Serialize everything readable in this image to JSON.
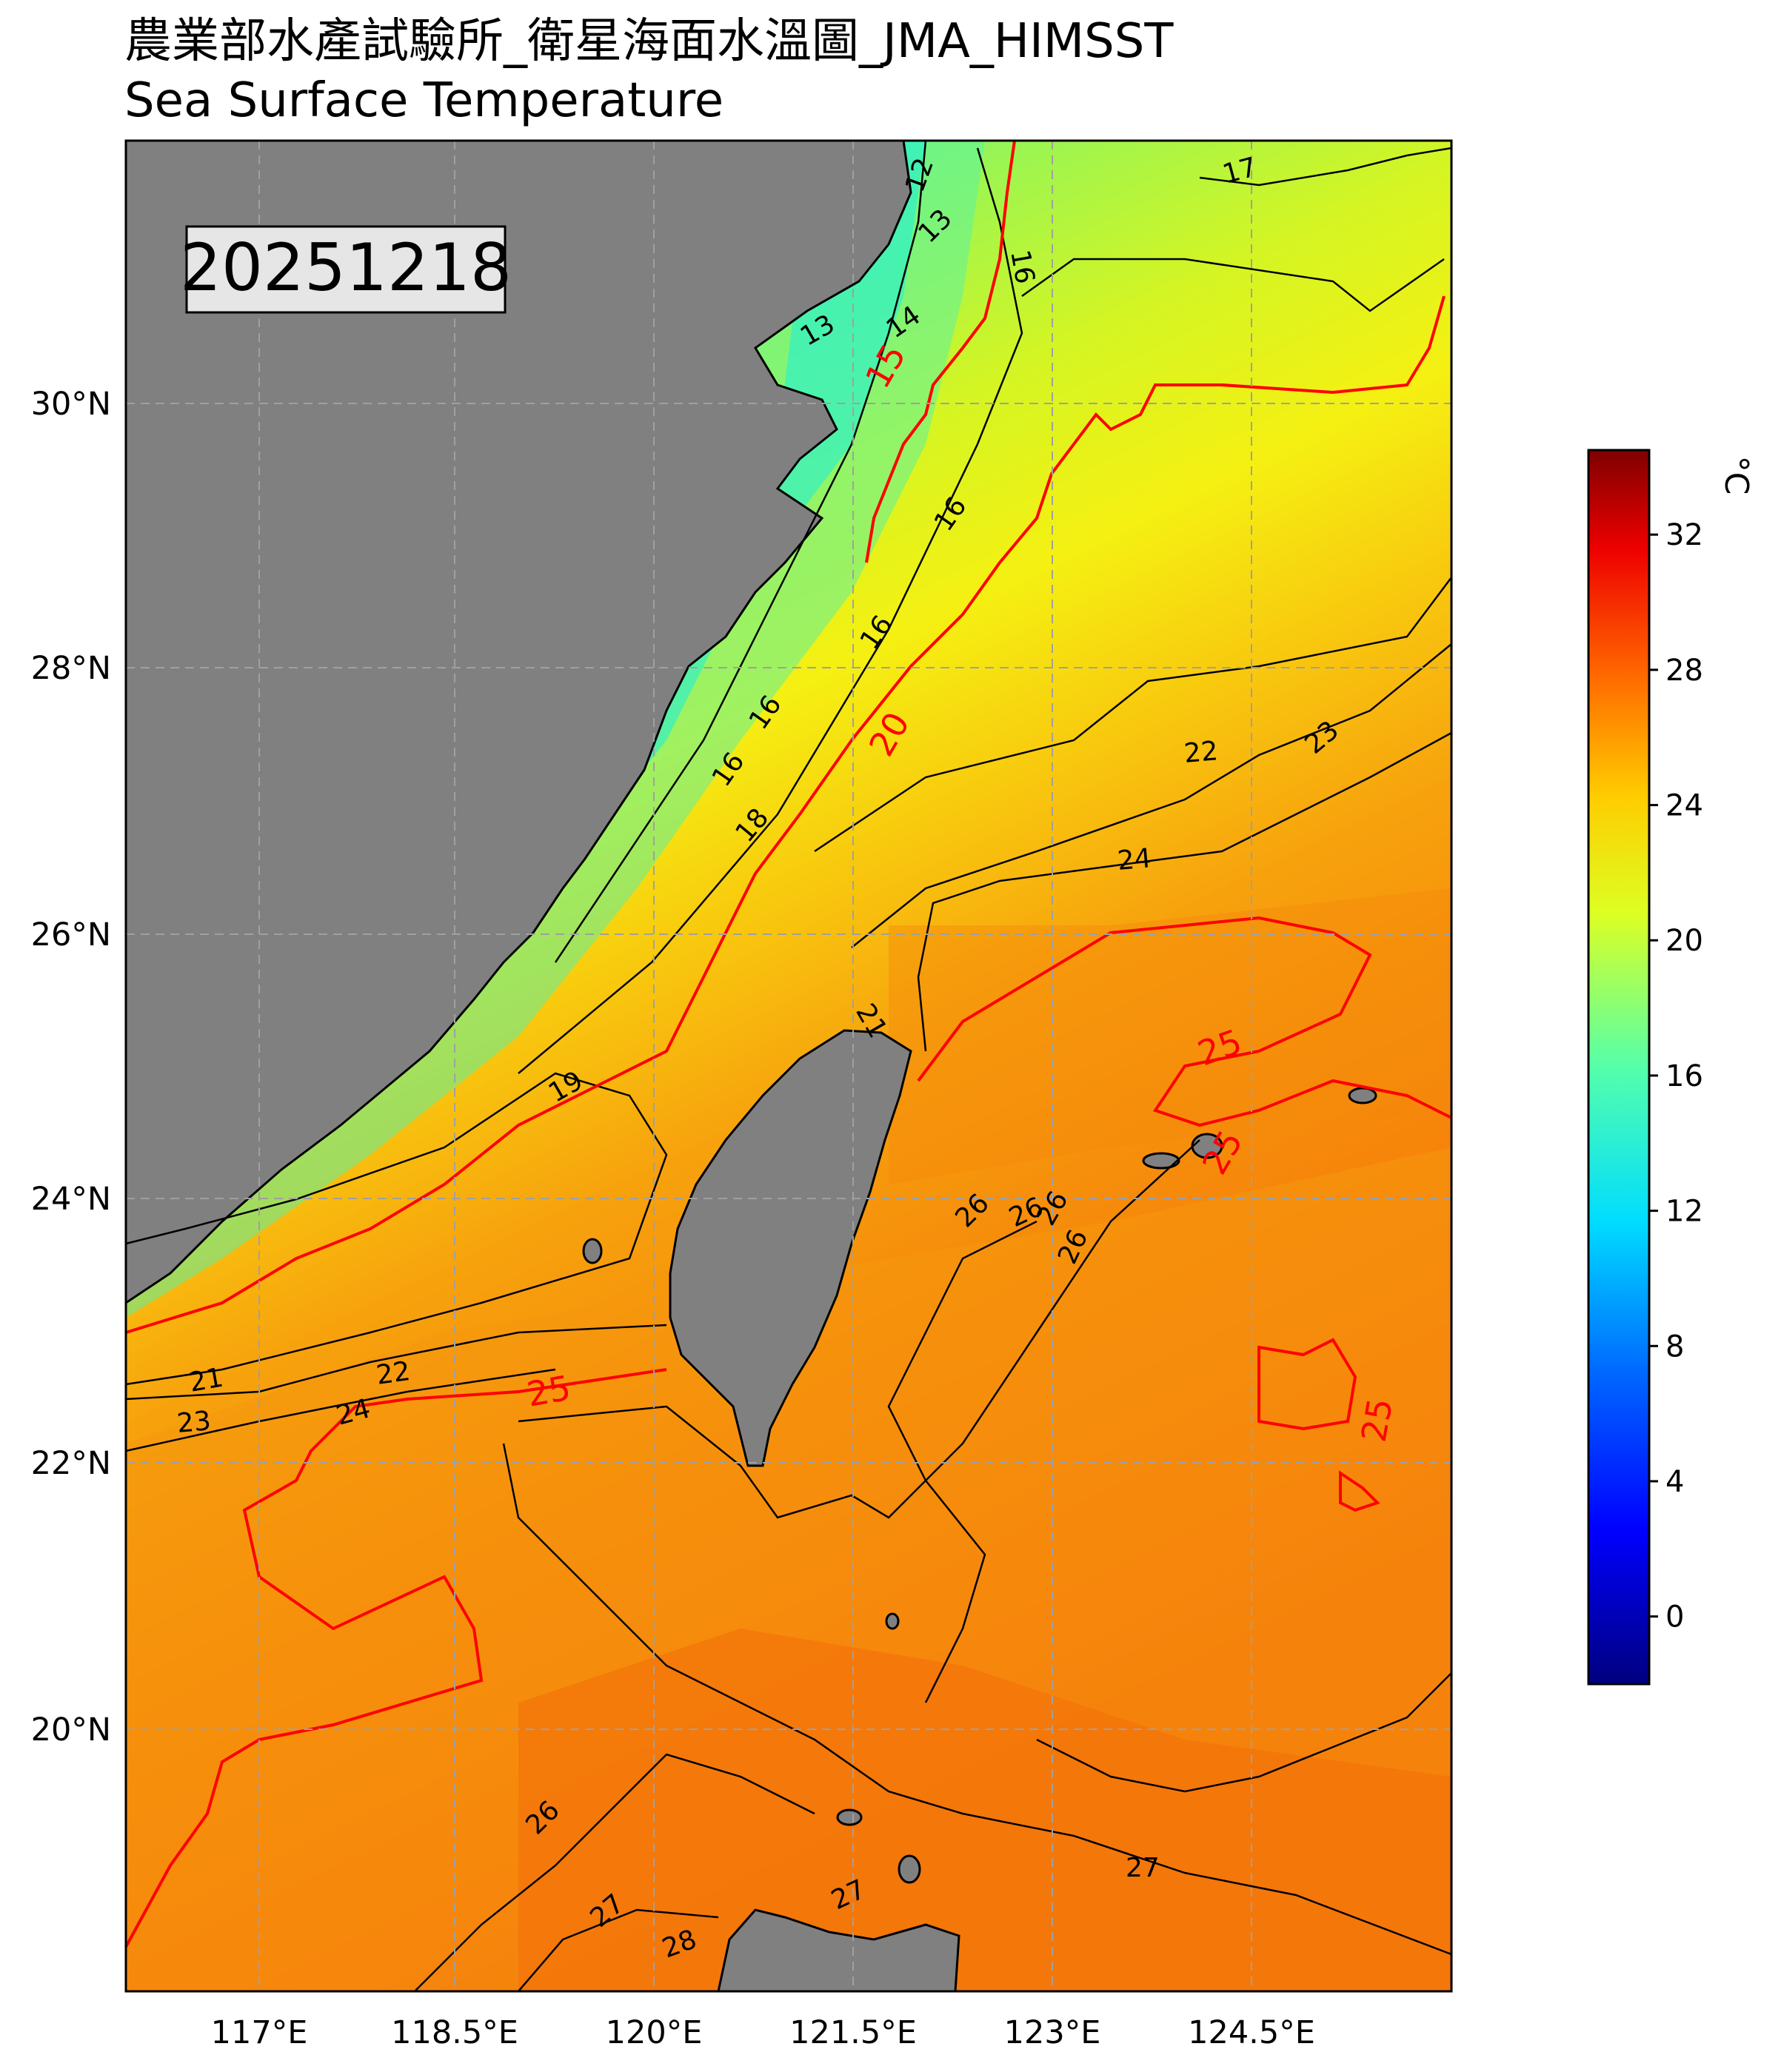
{
  "title": {
    "line1": "農業部水產試驗所_衛星海面水溫圖_JMA_HIMSST",
    "line2": "Sea Surface Temperature"
  },
  "date_label": "20251218",
  "colorbar": {
    "unit": "°C",
    "ticks": [
      "32",
      "28",
      "24",
      "20",
      "16",
      "12",
      "8",
      "4",
      "0"
    ],
    "tick_values": [
      32,
      28,
      24,
      20,
      16,
      12,
      8,
      4,
      0
    ],
    "range": [
      -2,
      34.5
    ],
    "colormap": [
      "#00007f",
      "#0000ff",
      "#007fff",
      "#00ffff",
      "#7fff7f",
      "#ffff00",
      "#ff7f00",
      "#ff0000",
      "#7f0000"
    ]
  },
  "axes": {
    "lat_ticks": [
      "30°N",
      "28°N",
      "26°N",
      "24°N",
      "22°N",
      "20°N"
    ],
    "lat_values": [
      30,
      28,
      26,
      24,
      22,
      20
    ],
    "lon_ticks": [
      "117°E",
      "118.5°E",
      "120°E",
      "121.5°E",
      "123°E",
      "124.5°E"
    ],
    "lon_values": [
      117,
      118.5,
      120,
      121.5,
      123,
      124.5
    ],
    "lon_range": [
      116,
      126
    ],
    "lat_range": [
      18,
      32
    ],
    "grid": "dashed gray"
  },
  "colors": {
    "land": "#808080",
    "highlight_contour": "#ff0000",
    "contour": "#000000",
    "grid": "#a0a0a0"
  },
  "contour_labels": {
    "black": [
      "12",
      "13",
      "13",
      "14",
      "16",
      "16",
      "16",
      "16",
      "16",
      "17",
      "18",
      "19",
      "21",
      "21",
      "22",
      "22",
      "23",
      "23",
      "24",
      "24",
      "26",
      "26",
      "26",
      "26",
      "26",
      "27",
      "27",
      "27",
      "28"
    ],
    "red": [
      "15",
      "20",
      "25",
      "25",
      "25",
      "25"
    ]
  },
  "icons": {
    "land_mass": "gray-land-shape",
    "islands": "small-island-shapes"
  }
}
